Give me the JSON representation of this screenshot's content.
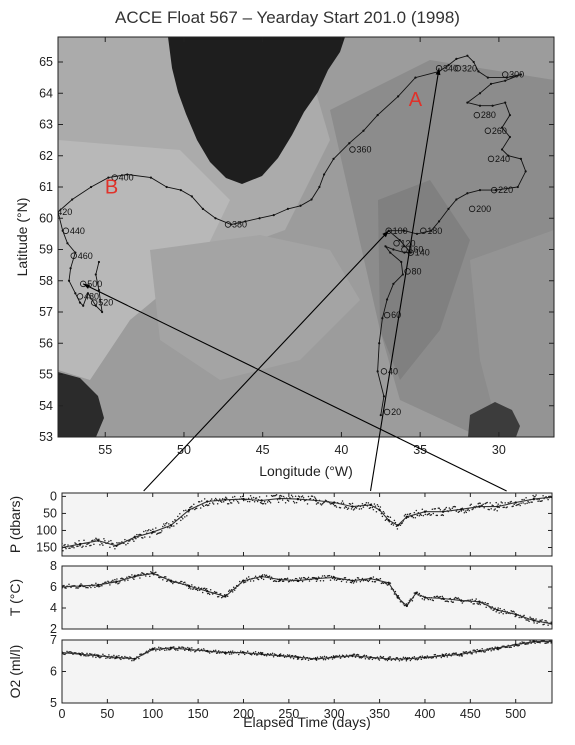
{
  "chart_data": [
    {
      "type": "line",
      "subtype": "map-track",
      "title": "ACCE Float 567 – Yearday Start 201.0 (1998)",
      "xlabel": "Longitude (°W)",
      "ylabel": "Latitude (°N)",
      "xlim": [
        58,
        26.5
      ],
      "ylim": [
        53,
        65.8
      ],
      "xticks": [
        55,
        50,
        45,
        40,
        35,
        30
      ],
      "yticks": [
        53,
        54,
        55,
        56,
        57,
        58,
        59,
        60,
        61,
        62,
        63,
        64,
        65
      ],
      "markers": [
        {
          "label": "A",
          "lon": 35.3,
          "lat": 63.6
        },
        {
          "label": "B",
          "lon": 54.6,
          "lat": 60.8
        }
      ],
      "track": [
        [
          37.5,
          53.7
        ],
        [
          37.3,
          54.3
        ],
        [
          37.7,
          55.1
        ],
        [
          37.6,
          56.0
        ],
        [
          37.4,
          56.8
        ],
        [
          37.1,
          57.4
        ],
        [
          36.7,
          57.9
        ],
        [
          36.1,
          58.2
        ],
        [
          36.2,
          58.6
        ],
        [
          36.9,
          58.9
        ],
        [
          37.2,
          59.1
        ],
        [
          36.7,
          59.0
        ],
        [
          36.0,
          58.9
        ],
        [
          35.6,
          58.9
        ],
        [
          36.3,
          59.3
        ],
        [
          37.0,
          59.6
        ],
        [
          36.0,
          59.6
        ],
        [
          35.2,
          59.5
        ],
        [
          34.3,
          59.6
        ],
        [
          33.8,
          59.9
        ],
        [
          33.2,
          60.3
        ],
        [
          32.7,
          60.6
        ],
        [
          32.0,
          60.8
        ],
        [
          31.2,
          60.9
        ],
        [
          30.2,
          60.9
        ],
        [
          28.8,
          61.0
        ],
        [
          28.3,
          61.5
        ],
        [
          28.6,
          61.9
        ],
        [
          29.4,
          62.0
        ],
        [
          29.8,
          62.2
        ],
        [
          29.3,
          62.6
        ],
        [
          29.8,
          62.9
        ],
        [
          29.3,
          63.3
        ],
        [
          29.6,
          63.7
        ],
        [
          30.4,
          63.6
        ],
        [
          31.2,
          63.6
        ],
        [
          32.0,
          63.7
        ],
        [
          31.2,
          64.0
        ],
        [
          30.5,
          64.3
        ],
        [
          29.6,
          64.4
        ],
        [
          28.6,
          64.6
        ],
        [
          29.5,
          64.5
        ],
        [
          30.7,
          64.5
        ],
        [
          31.3,
          64.7
        ],
        [
          31.6,
          65.0
        ],
        [
          32.0,
          65.2
        ],
        [
          32.7,
          65.1
        ],
        [
          33.2,
          64.9
        ],
        [
          33.8,
          64.7
        ],
        [
          35.3,
          64.5
        ],
        [
          36.4,
          63.9
        ],
        [
          37.7,
          63.3
        ],
        [
          38.6,
          62.8
        ],
        [
          39.5,
          62.4
        ],
        [
          40.5,
          61.9
        ],
        [
          41.1,
          61.4
        ],
        [
          41.4,
          61.0
        ],
        [
          41.9,
          60.6
        ],
        [
          42.6,
          60.4
        ],
        [
          43.4,
          60.3
        ],
        [
          44.3,
          60.1
        ],
        [
          45.2,
          60.0
        ],
        [
          46.1,
          59.9
        ],
        [
          47.0,
          59.8
        ],
        [
          48.0,
          60.0
        ],
        [
          48.8,
          60.3
        ],
        [
          49.5,
          60.7
        ],
        [
          50.2,
          60.9
        ],
        [
          51.1,
          61.0
        ],
        [
          52.1,
          61.3
        ],
        [
          53.6,
          61.4
        ],
        [
          54.8,
          61.3
        ],
        [
          55.9,
          61.0
        ],
        [
          57.1,
          60.6
        ],
        [
          58.0,
          60.2
        ],
        [
          57.7,
          59.6
        ],
        [
          57.4,
          59.2
        ],
        [
          56.9,
          58.9
        ],
        [
          57.2,
          58.4
        ],
        [
          57.3,
          58.0
        ],
        [
          56.9,
          57.6
        ],
        [
          56.6,
          57.3
        ],
        [
          56.4,
          57.2
        ],
        [
          56.1,
          57.6
        ],
        [
          55.6,
          57.2
        ],
        [
          55.2,
          57.0
        ],
        [
          55.4,
          57.7
        ],
        [
          55.6,
          58.2
        ],
        [
          55.4,
          58.6
        ]
      ],
      "labeled_points": [
        {
          "label": "20",
          "lon": 37.1,
          "lat": 53.8
        },
        {
          "label": "40",
          "lon": 37.3,
          "lat": 55.1
        },
        {
          "label": "60",
          "lon": 37.1,
          "lat": 56.9
        },
        {
          "label": "80",
          "lon": 35.8,
          "lat": 58.3
        },
        {
          "label": "100",
          "lon": 37.0,
          "lat": 59.6
        },
        {
          "label": "120",
          "lon": 36.5,
          "lat": 59.2
        },
        {
          "label": "140",
          "lon": 35.6,
          "lat": 58.9
        },
        {
          "label": "160",
          "lon": 36.0,
          "lat": 59.0
        },
        {
          "label": "180",
          "lon": 34.8,
          "lat": 59.6
        },
        {
          "label": "200",
          "lon": 31.7,
          "lat": 60.3
        },
        {
          "label": "220",
          "lon": 30.3,
          "lat": 60.9
        },
        {
          "label": "240",
          "lon": 30.5,
          "lat": 61.9
        },
        {
          "label": "260",
          "lon": 30.7,
          "lat": 62.8
        },
        {
          "label": "280",
          "lon": 31.4,
          "lat": 63.3
        },
        {
          "label": "300",
          "lon": 29.6,
          "lat": 64.6
        },
        {
          "label": "320",
          "lon": 32.6,
          "lat": 64.8
        },
        {
          "label": "340",
          "lon": 33.8,
          "lat": 64.8
        },
        {
          "label": "360",
          "lon": 39.3,
          "lat": 62.2
        },
        {
          "label": "380",
          "lon": 47.2,
          "lat": 59.8
        },
        {
          "label": "400",
          "lon": 54.4,
          "lat": 61.3
        },
        {
          "label": "420",
          "lon": 58.3,
          "lat": 60.2
        },
        {
          "label": "440",
          "lon": 57.5,
          "lat": 59.6
        },
        {
          "label": "460",
          "lon": 57.0,
          "lat": 58.8
        },
        {
          "label": "480",
          "lon": 56.6,
          "lat": 57.5
        },
        {
          "label": "500",
          "lon": 56.4,
          "lat": 57.9
        },
        {
          "label": "520",
          "lon": 55.7,
          "lat": 57.3
        }
      ]
    },
    {
      "type": "scatter",
      "ylabel": "P (dbars)",
      "xlim": [
        0,
        540
      ],
      "ylim": [
        175,
        -10
      ],
      "yticks": [
        0,
        50,
        100,
        150
      ],
      "x": [
        0,
        20,
        40,
        60,
        80,
        100,
        120,
        140,
        160,
        180,
        200,
        220,
        240,
        260,
        280,
        300,
        320,
        340,
        350,
        360,
        370,
        380,
        400,
        420,
        440,
        460,
        480,
        500,
        520,
        540
      ],
      "values": [
        150,
        140,
        130,
        145,
        120,
        105,
        85,
        40,
        15,
        10,
        8,
        12,
        6,
        8,
        12,
        18,
        30,
        25,
        40,
        70,
        85,
        60,
        45,
        45,
        38,
        30,
        30,
        18,
        8,
        2
      ]
    },
    {
      "type": "scatter",
      "ylabel": "T (°C)",
      "xlim": [
        0,
        540
      ],
      "ylim": [
        2,
        8
      ],
      "yticks": [
        2,
        4,
        6,
        8
      ],
      "x": [
        0,
        20,
        40,
        60,
        80,
        100,
        120,
        140,
        160,
        180,
        200,
        220,
        240,
        260,
        280,
        300,
        320,
        340,
        360,
        370,
        380,
        390,
        400,
        420,
        440,
        460,
        480,
        500,
        520,
        540
      ],
      "values": [
        6.0,
        6.1,
        6.2,
        6.5,
        7.0,
        7.3,
        6.6,
        6.1,
        5.6,
        5.1,
        6.6,
        7.0,
        6.7,
        6.6,
        6.8,
        6.9,
        6.6,
        6.8,
        6.4,
        5.0,
        4.2,
        5.4,
        5.0,
        4.9,
        4.7,
        4.6,
        3.8,
        3.4,
        2.8,
        2.5
      ]
    },
    {
      "type": "scatter",
      "ylabel": "O2 (ml/l)",
      "xlim": [
        0,
        540
      ],
      "ylim": [
        5,
        7
      ],
      "yticks": [
        5,
        6,
        7
      ],
      "xlabel": "Elapsed Time (days)",
      "xticks": [
        0,
        50,
        100,
        150,
        200,
        250,
        300,
        350,
        400,
        450,
        500
      ],
      "x": [
        0,
        20,
        40,
        60,
        80,
        100,
        120,
        140,
        160,
        180,
        200,
        220,
        240,
        260,
        280,
        300,
        320,
        340,
        360,
        380,
        400,
        420,
        440,
        460,
        480,
        500,
        520,
        540
      ],
      "values": [
        6.6,
        6.55,
        6.5,
        6.45,
        6.4,
        6.7,
        6.75,
        6.7,
        6.65,
        6.6,
        6.6,
        6.55,
        6.5,
        6.45,
        6.4,
        6.45,
        6.5,
        6.45,
        6.4,
        6.4,
        6.45,
        6.5,
        6.55,
        6.65,
        6.75,
        6.85,
        6.95,
        6.95
      ]
    }
  ]
}
